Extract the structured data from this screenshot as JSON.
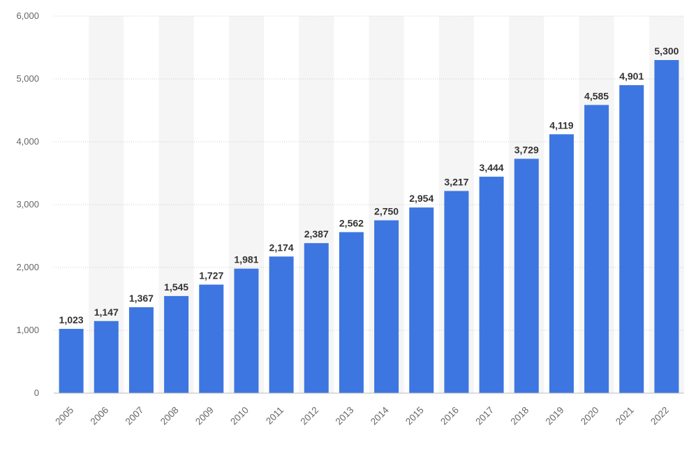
{
  "chart_data": {
    "type": "bar",
    "title": "",
    "xlabel": "",
    "ylabel": "",
    "categories": [
      "2005",
      "2006",
      "2007",
      "2008",
      "2009",
      "2010",
      "2011",
      "2012",
      "2013",
      "2014",
      "2015",
      "2016",
      "2017",
      "2018",
      "2019",
      "2020",
      "2021",
      "2022"
    ],
    "values": [
      1023,
      1147,
      1367,
      1545,
      1727,
      1981,
      2174,
      2387,
      2562,
      2750,
      2954,
      3217,
      3444,
      3729,
      4119,
      4585,
      4901,
      5300
    ],
    "value_labels": [
      "1,023",
      "1,147",
      "1,367",
      "1,545",
      "1,727",
      "1,981",
      "2,174",
      "2,387",
      "2,562",
      "2,750",
      "2,954",
      "3,217",
      "3,444",
      "3,729",
      "4,119",
      "4,585",
      "4,901",
      "5,300"
    ],
    "ylim": [
      0,
      6000
    ],
    "y_ticks": [
      0,
      1000,
      2000,
      3000,
      4000,
      5000,
      6000
    ],
    "y_tick_labels": [
      "0",
      "1,000",
      "2,000",
      "3,000",
      "4,000",
      "5,000",
      "6,000"
    ],
    "grid": true,
    "grid_style": "dotted",
    "alternating_column_bands": true,
    "legend": "none",
    "colors": {
      "bar": "#3D76E0",
      "band": "#F5F5F5",
      "grid": "#CCCCCC",
      "tick_text": "#666666",
      "label_text": "#333333"
    }
  }
}
